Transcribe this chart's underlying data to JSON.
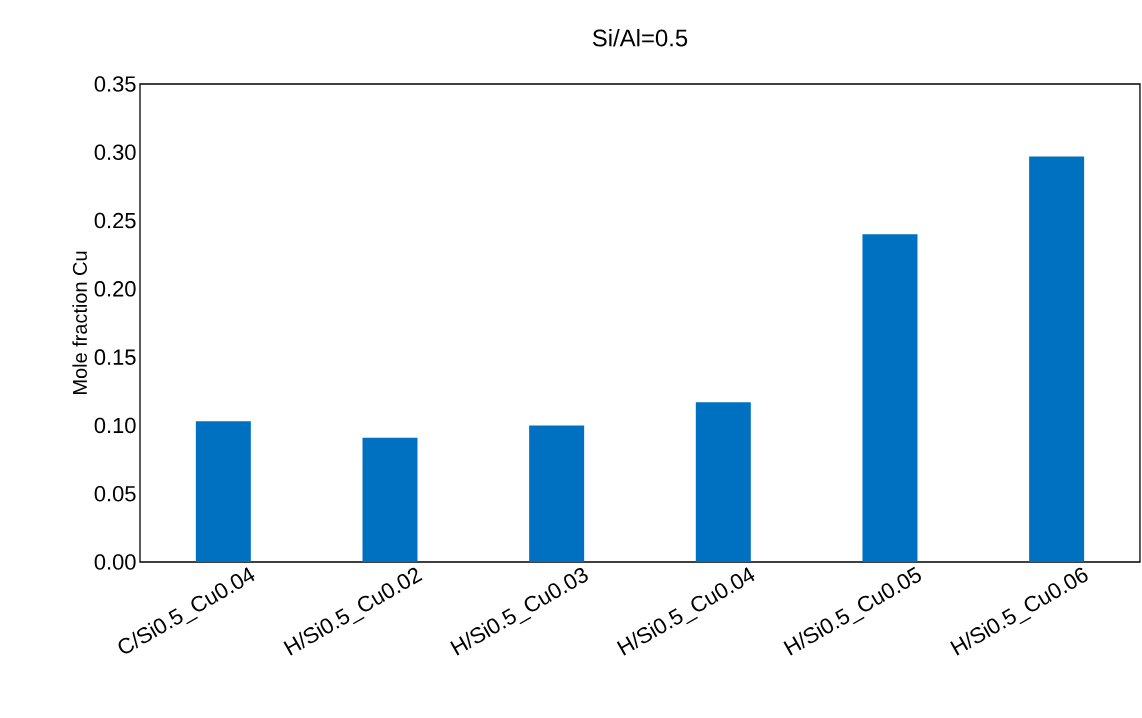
{
  "chart_data": {
    "type": "bar",
    "title": "Si/Al=0.5",
    "ylabel": "Mole fraction Cu",
    "categories": [
      "C/Si0.5_Cu0.04",
      "H/Si0.5_Cu0.02",
      "H/Si0.5_Cu0.03",
      "H/Si0.5_Cu0.04",
      "H/Si0.5_Cu0.05",
      "H/Si0.5_Cu0.06"
    ],
    "values": [
      0.103,
      0.091,
      0.1,
      0.117,
      0.24,
      0.297
    ],
    "color": "#0070c0",
    "ylim": [
      0,
      0.35
    ],
    "yticks": [
      {
        "value": 0,
        "label": "0.00"
      },
      {
        "value": 0.05,
        "label": "0.05"
      },
      {
        "value": 0.1,
        "label": "0.10"
      },
      {
        "value": 0.15,
        "label": "0.15"
      },
      {
        "value": 0.2,
        "label": "0.20"
      },
      {
        "value": 0.25,
        "label": "0.25"
      },
      {
        "value": 0.3,
        "label": "0.30"
      },
      {
        "value": 0.35,
        "label": "0.35"
      }
    ],
    "grid": false
  }
}
